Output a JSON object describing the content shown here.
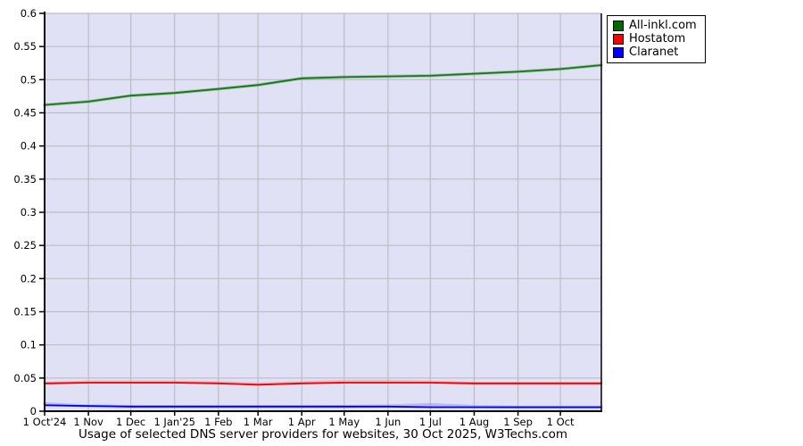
{
  "title": "Usage of selected DNS server providers for websites, 30 Oct 2025, W3Techs.com",
  "legend": {
    "items": [
      {
        "label": "All-inkl.com",
        "color": "#006A00"
      },
      {
        "label": "Hostatom",
        "color": "#FF0000"
      },
      {
        "label": "Claranet",
        "color": "#0000FF"
      }
    ]
  },
  "chart_data": {
    "type": "line",
    "title": "Usage of selected DNS server providers for websites, 30 Oct 2025, W3Techs.com",
    "ylim": [
      0,
      0.6
    ],
    "grid": true,
    "plot_bg": "#E1E1F5",
    "grid_color": "#BCBCC6",
    "axis_color": "#000000",
    "legend_position": "top-right",
    "x": [
      "2024-10-01",
      "2024-11-01",
      "2024-12-01",
      "2025-01-01",
      "2025-02-01",
      "2025-03-01",
      "2025-04-01",
      "2025-05-01",
      "2025-06-01",
      "2025-07-01",
      "2025-08-01",
      "2025-09-01",
      "2025-10-01",
      "2025-10-30"
    ],
    "x_ticks": [
      {
        "date": "2024-10-01",
        "label": "1 Oct'24"
      },
      {
        "date": "2024-11-01",
        "label": "1 Nov"
      },
      {
        "date": "2024-12-01",
        "label": "1 Dec"
      },
      {
        "date": "2025-01-01",
        "label": "1 Jan'25"
      },
      {
        "date": "2025-02-01",
        "label": "1 Feb"
      },
      {
        "date": "2025-03-01",
        "label": "1 Mar"
      },
      {
        "date": "2025-04-01",
        "label": "1 Apr"
      },
      {
        "date": "2025-05-01",
        "label": "1 May"
      },
      {
        "date": "2025-06-01",
        "label": "1 Jun"
      },
      {
        "date": "2025-07-01",
        "label": "1 Jul"
      },
      {
        "date": "2025-08-01",
        "label": "1 Aug"
      },
      {
        "date": "2025-09-01",
        "label": "1 Sep"
      },
      {
        "date": "2025-10-01",
        "label": "1 Oct"
      }
    ],
    "y_tick_values": [
      0.6,
      0.55,
      0.5,
      0.45,
      0.4,
      0.35,
      0.3,
      0.25,
      0.2,
      0.15,
      0.1,
      0.05,
      0
    ],
    "y_tick_labels": [
      "0.6",
      "0.55",
      "0.5",
      "0.45",
      "0.4",
      "0.35",
      "0.3",
      "0.25",
      "0.2",
      "0.15",
      "0.1",
      "0.05",
      "0"
    ],
    "series": [
      {
        "name": "All-inkl.com",
        "color": "#187818",
        "halo_color": "#66A866",
        "values": [
          0.462,
          0.467,
          0.476,
          0.48,
          0.486,
          0.492,
          0.502,
          0.504,
          0.505,
          0.506,
          0.509,
          0.512,
          0.516,
          0.522
        ]
      },
      {
        "name": "Hostatom",
        "color": "#EE0000",
        "halo_color": "#FF9090",
        "values": [
          0.042,
          0.043,
          0.043,
          0.043,
          0.042,
          0.04,
          0.042,
          0.043,
          0.043,
          0.043,
          0.042,
          0.042,
          0.042,
          0.042
        ],
        "halo_values": [
          0.042,
          0.044,
          0.044,
          0.044,
          0.043,
          0.041,
          0.043,
          0.045,
          0.045,
          0.044,
          0.042,
          0.042,
          0.042,
          0.042
        ]
      },
      {
        "name": "Claranet",
        "color": "#0000E0",
        "halo_color": "#9090FF",
        "values": [
          0.009,
          0.008,
          0.007,
          0.007,
          0.007,
          0.007,
          0.007,
          0.007,
          0.007,
          0.006,
          0.006,
          0.006,
          0.006,
          0.006
        ],
        "halo_values": [
          0.011,
          0.008,
          0.007,
          0.007,
          0.007,
          0.007,
          0.007,
          0.007,
          0.008,
          0.01,
          0.007,
          0.006,
          0.006,
          0.006
        ]
      }
    ]
  }
}
